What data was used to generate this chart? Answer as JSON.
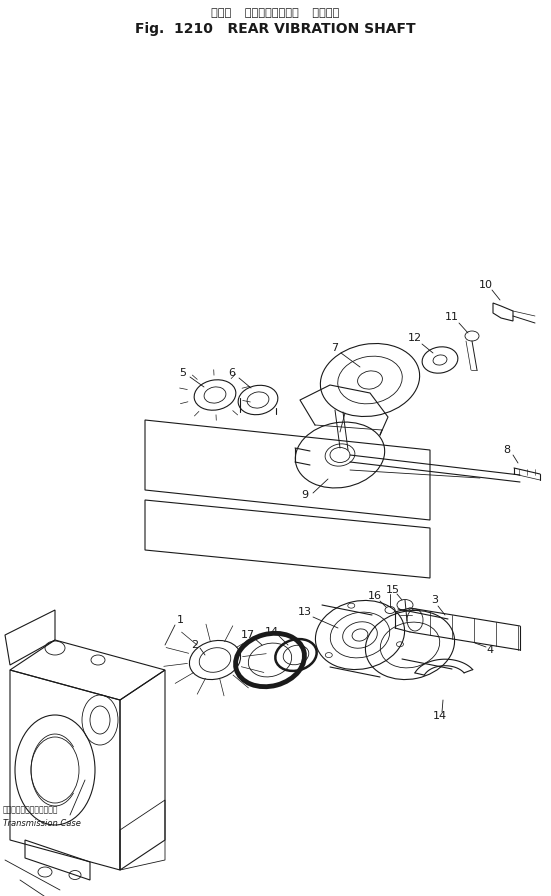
{
  "title_japanese": "リヤー  バイブレーション  シャフト",
  "title_english": "Fig.  1210   REAR VIBRATION SHAFT",
  "bg_color": "#ffffff",
  "line_color": "#1a1a1a",
  "title_fontsize": 10,
  "subtitle_fontsize": 8,
  "label_fontsize": 8,
  "transmission_case_japanese": "トランスミッションケース",
  "transmission_case_english": "Transmission Case"
}
